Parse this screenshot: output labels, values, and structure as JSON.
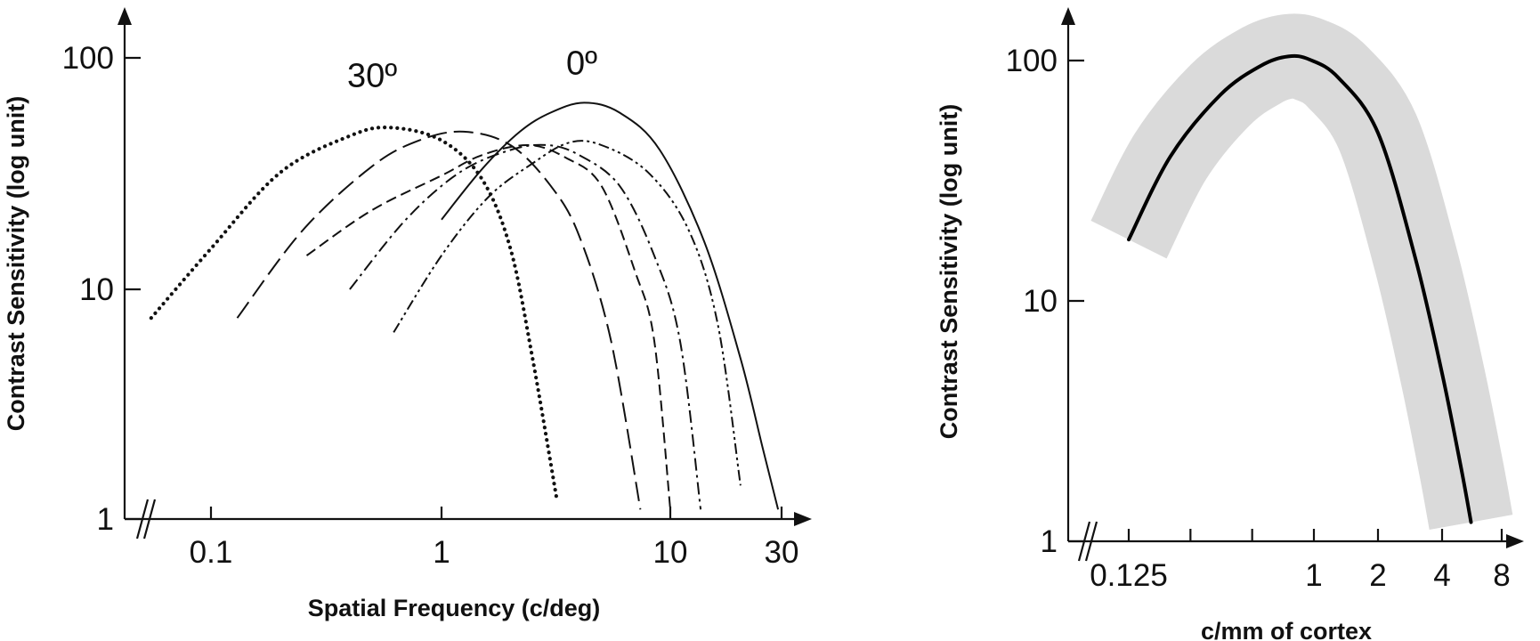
{
  "chart_data": [
    {
      "type": "line",
      "xlabel": "Spatial Frequency (c/deg)",
      "ylabel": "Contrast Sensitivity (log unit)",
      "x_scale": "log",
      "y_scale": "log",
      "xlim": [
        0.05,
        30
      ],
      "ylim": [
        1,
        100
      ],
      "x_ticks": [
        {
          "value": 0.1,
          "label": "0.1"
        },
        {
          "value": 1,
          "label": "1"
        },
        {
          "value": 10,
          "label": "10"
        },
        {
          "value": 30,
          "label": "30"
        }
      ],
      "y_ticks": [
        {
          "value": 1,
          "label": "1"
        },
        {
          "value": 10,
          "label": "10"
        },
        {
          "value": 100,
          "label": "100"
        }
      ],
      "axis_break": true,
      "grid": false,
      "annotations": [
        {
          "text": "30º",
          "x": 0.5,
          "y": 75
        },
        {
          "text": "0º",
          "x": 4.1,
          "y": 85
        }
      ],
      "series": [
        {
          "style": "dotted",
          "points": [
            [
              0.055,
              7.5
            ],
            [
              0.1,
              15
            ],
            [
              0.2,
              32
            ],
            [
              0.4,
              46
            ],
            [
              0.6,
              50
            ],
            [
              1.0,
              44
            ],
            [
              1.5,
              30
            ],
            [
              2.0,
              15
            ],
            [
              2.5,
              5
            ],
            [
              3.2,
              1.2
            ]
          ]
        },
        {
          "style": "long-dash",
          "points": [
            [
              0.13,
              7.5
            ],
            [
              0.25,
              18
            ],
            [
              0.5,
              34
            ],
            [
              0.8,
              44
            ],
            [
              1.25,
              48
            ],
            [
              2.0,
              42
            ],
            [
              3.0,
              28
            ],
            [
              4.0,
              17
            ],
            [
              5.5,
              6
            ],
            [
              7.4,
              1.1
            ]
          ]
        },
        {
          "style": "medium-dash",
          "points": [
            [
              0.26,
              14
            ],
            [
              0.5,
              22
            ],
            [
              1.0,
              31
            ],
            [
              1.5,
              38
            ],
            [
              2.4,
              42
            ],
            [
              3.5,
              37
            ],
            [
              5.0,
              28
            ],
            [
              7.0,
              12
            ],
            [
              8.5,
              6
            ],
            [
              10,
              1.1
            ]
          ]
        },
        {
          "style": "dash-dot",
          "points": [
            [
              0.4,
              10
            ],
            [
              0.7,
              20
            ],
            [
              1.2,
              32
            ],
            [
              2.0,
              40
            ],
            [
              2.9,
              42
            ],
            [
              4.0,
              38
            ],
            [
              6.0,
              28
            ],
            [
              8.5,
              14
            ],
            [
              11,
              6
            ],
            [
              13.5,
              1.1
            ]
          ]
        },
        {
          "style": "dash-dot-dot",
          "points": [
            [
              0.62,
              6.5
            ],
            [
              1.0,
              14
            ],
            [
              1.6,
              25
            ],
            [
              2.5,
              35
            ],
            [
              3.6,
              43
            ],
            [
              5.0,
              42
            ],
            [
              8.0,
              32
            ],
            [
              12,
              18
            ],
            [
              16,
              7
            ],
            [
              20,
              1.4
            ]
          ]
        },
        {
          "style": "solid",
          "points": [
            [
              1.0,
              20
            ],
            [
              1.5,
              33
            ],
            [
              2.2,
              48
            ],
            [
              3.0,
              58
            ],
            [
              4.2,
              64
            ],
            [
              6.0,
              58
            ],
            [
              9.0,
              40
            ],
            [
              14,
              16
            ],
            [
              20,
              5
            ],
            [
              25,
              2
            ],
            [
              29,
              1.1
            ]
          ]
        }
      ]
    },
    {
      "type": "line",
      "xlabel": "c/mm of cortex",
      "ylabel": "Contrast Sensitivity (log unit)",
      "x_scale": "log",
      "y_scale": "log",
      "xlim": [
        0.08,
        10
      ],
      "ylim": [
        1,
        100
      ],
      "x_ticks": [
        {
          "value": 0.125,
          "label": "0.125"
        },
        {
          "value": 0.25,
          "label": ""
        },
        {
          "value": 0.5,
          "label": ""
        },
        {
          "value": 1,
          "label": "1"
        },
        {
          "value": 2,
          "label": "2"
        },
        {
          "value": 4,
          "label": "4"
        },
        {
          "value": 8,
          "label": "8"
        }
      ],
      "y_ticks": [
        {
          "value": 1,
          "label": "1"
        },
        {
          "value": 10,
          "label": "10"
        },
        {
          "value": 100,
          "label": "100"
        }
      ],
      "axis_break": true,
      "grid": false,
      "colors": {
        "band": "#dadada",
        "curve": "#000000"
      },
      "series": [
        {
          "style": "solid-with-shaded-band",
          "band_factor": 1.5,
          "points": [
            [
              0.125,
              18
            ],
            [
              0.2,
              40
            ],
            [
              0.35,
              72
            ],
            [
              0.55,
              95
            ],
            [
              0.75,
              104
            ],
            [
              0.95,
              101
            ],
            [
              1.3,
              85
            ],
            [
              2.0,
              50
            ],
            [
              3.0,
              15
            ],
            [
              4.0,
              5
            ],
            [
              5.0,
              2
            ],
            [
              5.6,
              1.2
            ]
          ]
        }
      ]
    }
  ]
}
